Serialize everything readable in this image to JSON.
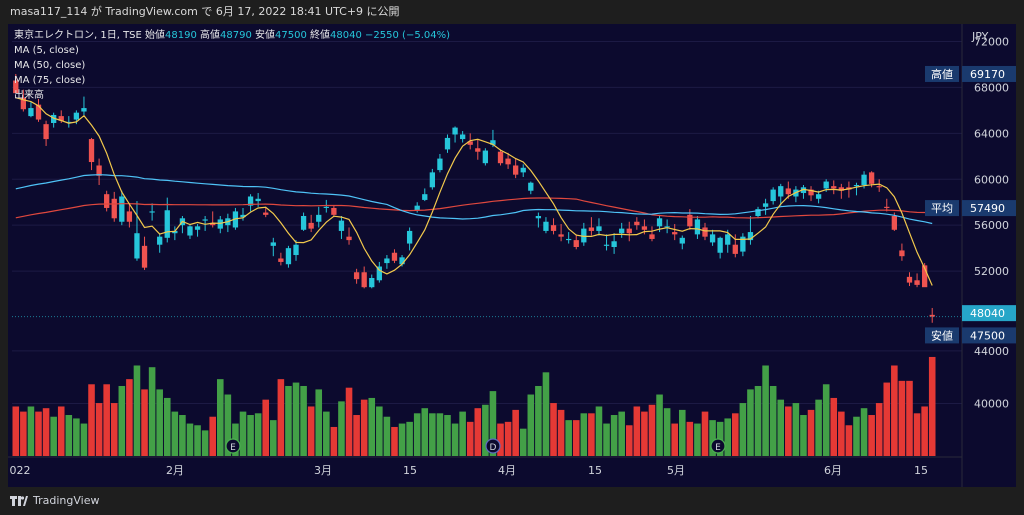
{
  "header": {
    "text": "masa117_114 が TradingView.com で 6月 17, 2022 18:41 UTC+9 に公開"
  },
  "legend": {
    "symbol": "東京エレクトロン, 1日, TSE",
    "open_label": "始値",
    "open": "48190",
    "high_label": "高値",
    "high": "48790",
    "low_label": "安値",
    "low": "47500",
    "close_label": "終値",
    "close": "48040",
    "change": "−2550 (−5.04%)",
    "ma5": "MA (5, close)",
    "ma50": "MA (50, close)",
    "ma75": "MA (75, close)",
    "volume": "出来高"
  },
  "price_axis": {
    "currency": "JPY",
    "ticks": [
      {
        "label": "72000",
        "value": 72000
      },
      {
        "label": "68000",
        "value": 68000
      },
      {
        "label": "64000",
        "value": 64000
      },
      {
        "label": "60000",
        "value": 60000
      },
      {
        "label": "56000",
        "value": 56000
      },
      {
        "label": "52000",
        "value": 52000
      },
      {
        "label": "44000",
        "value": 44000
      },
      {
        "label": "40000",
        "value": 40000
      }
    ]
  },
  "markers": {
    "high": {
      "label": "高値",
      "value": "69170"
    },
    "avg": {
      "label": "平均",
      "value": "57490"
    },
    "last": {
      "value": "48040"
    },
    "low": {
      "label": "安値",
      "value": "47500"
    }
  },
  "time_axis": {
    "ticks": [
      "022",
      "2月",
      "3月",
      "15",
      "4月",
      "15",
      "5月",
      "6月",
      "15"
    ]
  },
  "events": [
    "E",
    "D",
    "E"
  ],
  "footer": {
    "brand": "TradingView"
  },
  "colors": {
    "up": "#26c6da",
    "down": "#ef5350",
    "vol_up": "#43a047",
    "vol_down": "#e53935",
    "ma5": "#f2c94c",
    "ma50": "#4fc3f7",
    "ma75": "#e0483e",
    "background": "#0c0a2e"
  },
  "chart_data": {
    "type": "candlestick",
    "title": "東京エレクトロン, 1日, TSE",
    "ylim": [
      46000,
      73000
    ],
    "candles": [
      [
        68600,
        69170,
        67600,
        67500,
        2.9
      ],
      [
        67100,
        67800,
        65900,
        66100,
        2.6
      ],
      [
        65500,
        66800,
        65400,
        66200,
        2.9
      ],
      [
        66500,
        67000,
        65000,
        65200,
        2.6
      ],
      [
        64800,
        65100,
        62900,
        63500,
        2.8
      ],
      [
        64900,
        65800,
        64500,
        65600,
        2.3
      ],
      [
        65500,
        66000,
        64900,
        65100,
        2.9
      ],
      [
        64900,
        65500,
        64500,
        65000,
        2.4
      ],
      [
        65200,
        66000,
        64800,
        65800,
        2.2
      ],
      [
        65900,
        67200,
        65600,
        66200,
        1.9
      ],
      [
        63500,
        63600,
        60800,
        61500,
        4.2
      ],
      [
        61200,
        61800,
        59500,
        60300,
        3.1
      ],
      [
        58700,
        59000,
        57200,
        57500,
        4.2
      ],
      [
        58300,
        58900,
        56300,
        56600,
        3.1
      ],
      [
        56300,
        59000,
        56000,
        58500,
        4.1
      ],
      [
        57200,
        57800,
        55800,
        56300,
        4.5
      ],
      [
        53100,
        58100,
        52900,
        55300,
        5.3
      ],
      [
        54200,
        55000,
        52100,
        52300,
        3.9
      ],
      [
        57100,
        57900,
        56400,
        57200,
        5.2
      ],
      [
        54300,
        55200,
        53600,
        55000,
        3.9
      ],
      [
        54900,
        58400,
        54500,
        57300,
        3.4
      ],
      [
        55300,
        55900,
        54700,
        55500,
        2.6
      ],
      [
        56000,
        56800,
        55300,
        56600,
        2.4
      ],
      [
        55100,
        56000,
        54800,
        55900,
        1.9
      ],
      [
        55600,
        56100,
        55000,
        55900,
        1.8
      ],
      [
        56400,
        56800,
        55500,
        56500,
        1.5
      ],
      [
        56200,
        57200,
        55800,
        56000,
        2.3
      ],
      [
        55700,
        56800,
        55300,
        56500,
        4.5
      ],
      [
        56000,
        57000,
        55400,
        56600,
        3.6
      ],
      [
        55800,
        57500,
        55600,
        57200,
        1.9
      ],
      [
        56700,
        57500,
        56400,
        56900,
        2.6
      ],
      [
        57700,
        58700,
        57200,
        58500,
        2.4
      ],
      [
        58100,
        58800,
        57600,
        58300,
        2.5
      ],
      [
        57100,
        57600,
        56700,
        56900,
        3.3
      ],
      [
        54200,
        54900,
        53300,
        54500,
        2.1
      ],
      [
        53100,
        53600,
        52500,
        52800,
        4.5
      ],
      [
        52600,
        54200,
        52300,
        54000,
        4.1
      ],
      [
        53400,
        54700,
        52900,
        54300,
        4.3
      ],
      [
        55600,
        57100,
        55500,
        56800,
        4.1
      ],
      [
        56200,
        56900,
        55400,
        55700,
        2.9
      ],
      [
        56300,
        57600,
        55800,
        56900,
        3.9
      ],
      [
        57500,
        58200,
        57100,
        57600,
        2.6
      ],
      [
        57500,
        57700,
        56700,
        56900,
        1.7
      ],
      [
        55500,
        56800,
        54800,
        56400,
        3.2
      ],
      [
        55000,
        55800,
        54300,
        54700,
        4.0
      ],
      [
        51900,
        52200,
        50900,
        51300,
        2.4
      ],
      [
        51900,
        52400,
        50500,
        50600,
        3.3
      ],
      [
        50600,
        51700,
        50500,
        51400,
        3.4
      ],
      [
        51200,
        52800,
        51000,
        52400,
        2.9
      ],
      [
        52700,
        53400,
        52200,
        53100,
        2.3
      ],
      [
        53600,
        53900,
        52700,
        52900,
        1.7
      ],
      [
        52600,
        53400,
        52400,
        53200,
        1.9
      ],
      [
        54400,
        55800,
        53800,
        55500,
        2.0
      ],
      [
        57300,
        58000,
        57100,
        57700,
        2.5
      ],
      [
        58200,
        59200,
        58100,
        58700,
        2.8
      ],
      [
        59300,
        60900,
        59100,
        60600,
        2.5
      ],
      [
        60800,
        62200,
        60600,
        61800,
        2.5
      ],
      [
        62600,
        63900,
        62300,
        63600,
        2.4
      ],
      [
        63900,
        64600,
        63200,
        64500,
        1.9
      ],
      [
        63500,
        64200,
        63200,
        63900,
        2.6
      ],
      [
        63300,
        64000,
        62600,
        63000,
        2.0
      ],
      [
        62700,
        63500,
        61700,
        62400,
        2.8
      ],
      [
        61400,
        62700,
        61200,
        62500,
        3.0
      ],
      [
        63000,
        64300,
        62800,
        63400,
        3.8
      ],
      [
        62400,
        62600,
        61200,
        61400,
        1.9
      ],
      [
        61800,
        62300,
        60900,
        61300,
        2.0
      ],
      [
        61200,
        61800,
        60100,
        60400,
        2.7
      ],
      [
        60600,
        61300,
        60200,
        61000,
        1.6
      ],
      [
        59000,
        59800,
        58700,
        59700,
        3.6
      ],
      [
        56600,
        57100,
        55800,
        56800,
        4.1
      ],
      [
        55500,
        56700,
        55300,
        56300,
        4.9
      ],
      [
        56000,
        56600,
        55200,
        55500,
        3.1
      ],
      [
        55200,
        56100,
        54600,
        55000,
        2.7
      ],
      [
        54700,
        55400,
        54400,
        54800,
        2.1
      ],
      [
        54700,
        55200,
        53900,
        54100,
        2.1
      ],
      [
        54500,
        56200,
        54200,
        55700,
        2.5
      ],
      [
        55800,
        56700,
        55100,
        55500,
        2.5
      ],
      [
        55500,
        56600,
        55100,
        55900,
        2.9
      ],
      [
        54200,
        55200,
        53800,
        54300,
        1.9
      ],
      [
        54100,
        55300,
        53500,
        54600,
        2.4
      ],
      [
        55300,
        56200,
        54900,
        55700,
        2.6
      ],
      [
        55700,
        56300,
        54600,
        55300,
        1.8
      ],
      [
        56300,
        56700,
        55600,
        56000,
        2.9
      ],
      [
        55900,
        56500,
        55200,
        55600,
        2.6
      ],
      [
        55200,
        55900,
        54600,
        54800,
        3.0
      ],
      [
        55900,
        56900,
        55400,
        56600,
        3.6
      ],
      [
        55900,
        56500,
        55300,
        55900,
        2.8
      ],
      [
        55400,
        56100,
        54700,
        55200,
        1.9
      ],
      [
        54400,
        55100,
        53900,
        54900,
        2.7
      ],
      [
        56900,
        57400,
        55600,
        55900,
        2.0
      ],
      [
        55200,
        56800,
        54800,
        56500,
        1.9
      ],
      [
        55800,
        56200,
        54700,
        55000,
        2.6
      ],
      [
        54500,
        55600,
        54200,
        55200,
        2.1
      ],
      [
        53600,
        55000,
        53100,
        54900,
        2.0
      ],
      [
        54300,
        55600,
        53600,
        55200,
        2.2
      ],
      [
        54300,
        55200,
        53200,
        53500,
        2.5
      ],
      [
        53700,
        55300,
        53300,
        55000,
        3.1
      ],
      [
        54700,
        56800,
        54300,
        55400,
        3.9
      ],
      [
        56800,
        57600,
        56600,
        57400,
        4.1
      ],
      [
        57600,
        58300,
        56900,
        57900,
        5.3
      ],
      [
        58100,
        59300,
        57800,
        59100,
        4.1
      ],
      [
        58500,
        59600,
        57700,
        59400,
        3.3
      ],
      [
        59200,
        59800,
        58300,
        58700,
        2.9
      ],
      [
        58500,
        59400,
        58000,
        59100,
        3.1
      ],
      [
        58800,
        59500,
        58300,
        59300,
        2.4
      ],
      [
        59100,
        59400,
        58100,
        58600,
        2.7
      ],
      [
        58300,
        59000,
        57900,
        58700,
        3.3
      ],
      [
        59200,
        60000,
        58900,
        59800,
        4.2
      ],
      [
        59400,
        59900,
        58700,
        59200,
        3.4
      ],
      [
        59300,
        59600,
        58300,
        59000,
        2.6
      ],
      [
        59300,
        59800,
        58400,
        59100,
        1.8
      ],
      [
        59400,
        59700,
        58600,
        59500,
        2.3
      ],
      [
        59500,
        60700,
        59200,
        60400,
        2.8
      ],
      [
        60600,
        60700,
        59300,
        59600,
        2.4
      ],
      [
        59400,
        60000,
        58900,
        59300,
        3.1
      ],
      [
        57600,
        58300,
        57200,
        57500,
        4.3
      ],
      [
        56800,
        57100,
        55500,
        55600,
        5.3
      ],
      [
        53800,
        54400,
        52900,
        53300,
        4.4
      ],
      [
        51500,
        51900,
        50700,
        51000,
        4.4
      ],
      [
        51200,
        51800,
        50600,
        50800,
        2.5
      ],
      [
        52500,
        52700,
        50800,
        50600,
        2.9
      ],
      [
        48190,
        48790,
        47500,
        48040,
        5.8
      ]
    ],
    "volume_axis": {
      "ylim_volume_units": [
        0,
        6.5
      ]
    }
  }
}
